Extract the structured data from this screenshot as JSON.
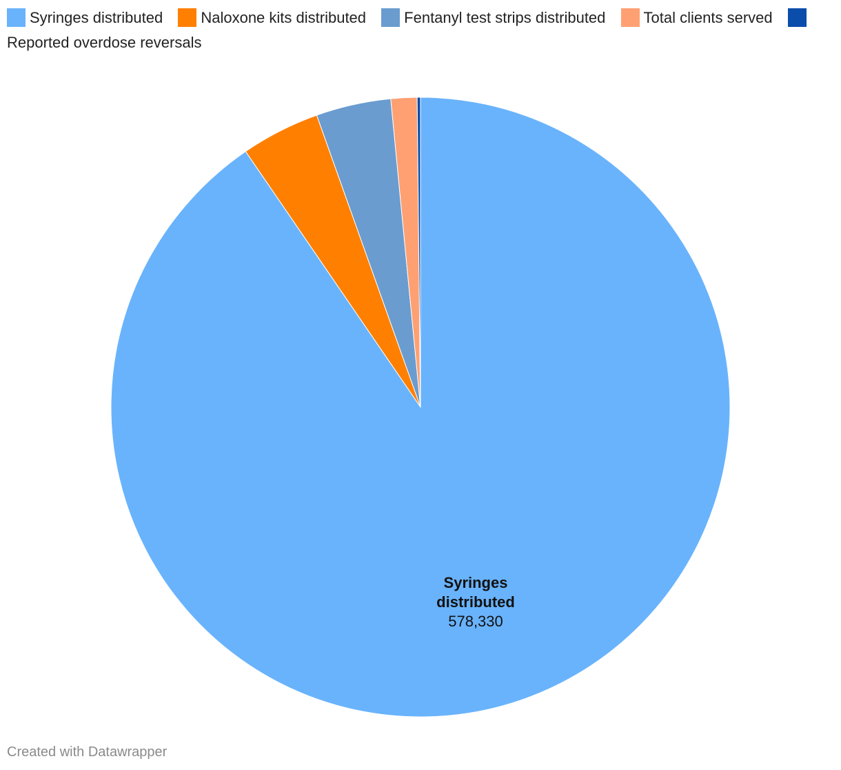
{
  "chart_data": {
    "type": "pie",
    "title": "",
    "slices": [
      {
        "label": "Syringes distributed",
        "value": 578330,
        "value_label": "578,330",
        "color": "#69b3fc",
        "label_line1": "Syringes",
        "label_line2": "distributed"
      },
      {
        "label": "Naloxone kits distributed",
        "value": 26300,
        "color": "#ff7f00"
      },
      {
        "label": "Fentanyl test strips distributed",
        "value": 25000,
        "color": "#6a9ccf"
      },
      {
        "label": "Total clients served",
        "value": 8700,
        "color": "#ffa072"
      },
      {
        "label": "Reported overdose reversals",
        "value": 1100,
        "color": "#0b4dab"
      }
    ],
    "start_angle_deg": 0,
    "direction": "clockwise",
    "legend_position": "top-left"
  },
  "footer": {
    "credit": "Created with Datawrapper"
  }
}
